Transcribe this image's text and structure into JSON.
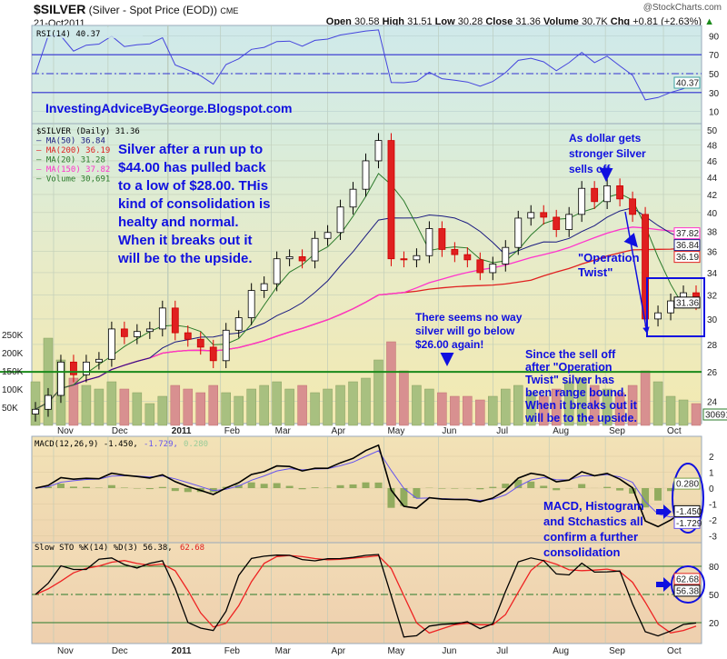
{
  "header": {
    "symbol": "$SILVER",
    "description": "(Silver - Spot Price (EOD))",
    "exchange": "CME",
    "date": "21-Oct2011",
    "watermark": "@StockCharts.com",
    "open_label": "Open",
    "open": "30.58",
    "high_label": "High",
    "high": "31.51",
    "low_label": "Low",
    "low": "30.28",
    "close_label": "Close",
    "close": "31.36",
    "volume_label": "Volume",
    "volume": "30.7K",
    "chg_label": "Chg",
    "chg": "+0.81 (+2.63%)"
  },
  "colors": {
    "annotation": "#1010e0",
    "ma50": "#1a1a80",
    "ma200": "#e02020",
    "ma20": "#2a7a2a",
    "ma150": "#ff33cc",
    "rsi": "#4444dd",
    "macd": "#000000",
    "signal": "#6655ee",
    "histogram": "#7aa04a",
    "sto_k": "#000000",
    "sto_d": "#ee2222",
    "support_line": "#1a8a1a"
  },
  "chart_data": {
    "type": "candlestick",
    "x_ticks": [
      {
        "label": "Nov",
        "date": "2010-11-01"
      },
      {
        "label": "Dec",
        "date": "2010-12-01"
      },
      {
        "label": "2011",
        "date": "2011-01-03"
      },
      {
        "label": "Feb",
        "date": "2011-02-01"
      },
      {
        "label": "Mar",
        "date": "2011-03-01"
      },
      {
        "label": "Apr",
        "date": "2011-04-01"
      },
      {
        "label": "May",
        "date": "2011-05-02"
      },
      {
        "label": "Jun",
        "date": "2011-06-01"
      },
      {
        "label": "Jul",
        "date": "2011-07-01"
      },
      {
        "label": "Aug",
        "date": "2011-08-01"
      },
      {
        "label": "Sep",
        "date": "2011-09-01"
      },
      {
        "label": "Oct",
        "date": "2011-10-03"
      }
    ],
    "dates": [
      "2010-10-22",
      "2010-10-29",
      "2010-11-05",
      "2010-11-12",
      "2010-11-19",
      "2010-11-26",
      "2010-12-03",
      "2010-12-10",
      "2010-12-17",
      "2010-12-24",
      "2010-12-31",
      "2011-01-07",
      "2011-01-14",
      "2011-01-21",
      "2011-01-28",
      "2011-02-04",
      "2011-02-11",
      "2011-02-18",
      "2011-02-25",
      "2011-03-04",
      "2011-03-11",
      "2011-03-18",
      "2011-03-25",
      "2011-04-01",
      "2011-04-08",
      "2011-04-15",
      "2011-04-22",
      "2011-04-29",
      "2011-05-06",
      "2011-05-13",
      "2011-05-20",
      "2011-05-27",
      "2011-06-03",
      "2011-06-10",
      "2011-06-17",
      "2011-06-24",
      "2011-07-01",
      "2011-07-08",
      "2011-07-15",
      "2011-07-22",
      "2011-07-29",
      "2011-08-05",
      "2011-08-12",
      "2011-08-19",
      "2011-08-26",
      "2011-09-02",
      "2011-09-09",
      "2011-09-16",
      "2011-09-23",
      "2011-09-30",
      "2011-10-07",
      "2011-10-14",
      "2011-10-21"
    ],
    "close": [
      23.5,
      24.4,
      26.7,
      25.8,
      26.7,
      26.9,
      29.2,
      28.6,
      29.0,
      29.2,
      30.9,
      28.9,
      28.4,
      27.8,
      26.8,
      29.1,
      30.1,
      32.4,
      33.0,
      35.3,
      35.5,
      35.1,
      37.3,
      37.9,
      40.6,
      42.6,
      46.0,
      48.6,
      35.3,
      35.2,
      35.6,
      38.3,
      36.2,
      35.7,
      35.2,
      34.0,
      34.8,
      36.4,
      39.4,
      40.0,
      39.5,
      38.2,
      39.8,
      42.7,
      41.2,
      43.0,
      41.5,
      39.8,
      30.0,
      30.5,
      31.5,
      32.2,
      31.36
    ],
    "volume_k": [
      120,
      240,
      180,
      130,
      110,
      100,
      120,
      100,
      90,
      60,
      80,
      110,
      100,
      90,
      110,
      90,
      80,
      100,
      110,
      120,
      100,
      110,
      90,
      100,
      110,
      120,
      130,
      180,
      230,
      150,
      110,
      100,
      90,
      80,
      80,
      70,
      80,
      100,
      110,
      90,
      80,
      100,
      120,
      130,
      110,
      100,
      90,
      110,
      150,
      120,
      80,
      70,
      60
    ],
    "price_panel": {
      "legend": [
        {
          "label": "$SILVER (Daily) 31.36",
          "color": "#000000"
        },
        {
          "label": "MA(50) 36.84",
          "color": "#1a1a80"
        },
        {
          "label": "MA(200) 36.19",
          "color": "#e02020"
        },
        {
          "label": "MA(20) 31.28",
          "color": "#2a7a2a"
        },
        {
          "label": "MA(150) 37.82",
          "color": "#ff33cc"
        },
        {
          "label": "Volume 30,691",
          "color": "#2a7a2a"
        }
      ],
      "y_scale": "log",
      "ylim": [
        23.5,
        51
      ],
      "y_ticks": [
        24,
        26,
        28,
        30,
        32,
        34,
        36,
        38,
        40,
        42,
        44,
        46,
        48,
        50
      ],
      "volume_ticks": [
        {
          "label": "50K",
          "value": 50
        },
        {
          "label": "100K",
          "value": 100
        },
        {
          "label": "150K",
          "value": 150
        },
        {
          "label": "200K",
          "value": 200
        },
        {
          "label": "250K",
          "value": 250
        }
      ],
      "value_badges": [
        {
          "label": "37.82",
          "value": 37.82,
          "color": "#ff33cc"
        },
        {
          "label": "36.84",
          "value": 36.84,
          "color": "#1a1a80"
        },
        {
          "label": "36.19",
          "value": 36.19,
          "color": "#e02020"
        },
        {
          "label": "31.36",
          "value": 31.36,
          "color": "#000000"
        }
      ],
      "volume_badge": "30691",
      "support_level": 26
    },
    "rsi_panel": {
      "legend": "RSI(14) 40.37",
      "ylim": [
        0,
        100
      ],
      "y_ticks": [
        10,
        30,
        50,
        70,
        90
      ],
      "badge": "40.37",
      "last": 40.37
    },
    "macd_panel": {
      "legend_main": "MACD(12,26,9) -1.450,",
      "legend_signal": "-1.729,",
      "legend_hist": "0.280",
      "ylim": [
        -3.4,
        3.4
      ],
      "y_ticks": [
        2,
        1,
        0,
        -1,
        -2,
        -3
      ],
      "y_tick_labels": [
        "2",
        "1",
        "0",
        "-1",
        "-2",
        "-3"
      ],
      "badges": [
        {
          "label": "0.280",
          "value": 0.28
        },
        {
          "label": "-1.450",
          "value": -1.45
        },
        {
          "label": "-1.729",
          "value": -1.729
        }
      ]
    },
    "sto_panel": {
      "legend_main": "Slow STO %K(14) %D(3) 56.38,",
      "legend_d": "62.68",
      "ylim": [
        0,
        105
      ],
      "y_ticks": [
        20,
        50,
        80
      ],
      "badges": [
        {
          "label": "62.68",
          "value": 62.68
        },
        {
          "label": "56.38",
          "value": 56.38
        }
      ]
    }
  },
  "annotations": {
    "blog": "InvestingAdviceByGeorge.Blogspot.com",
    "main_note": [
      "Silver after a run up to",
      "$44.00 has pulled back",
      "to a low of $28.00. THis",
      "kind of consolidation is",
      "healty and normal.",
      "When it breaks out it",
      "will be to the upside."
    ],
    "dollar_note": [
      "As dollar gets",
      "stronger Silver",
      "sells off"
    ],
    "twist_note": [
      "\"Operation",
      "Twist\""
    ],
    "support_note": [
      "There seems no way",
      "silver will go below",
      "$26.00 again!"
    ],
    "range_note": [
      "Since the sell off",
      "after \"Operation",
      "Twist\" silver has",
      "been range bound.",
      "When it breaks out it",
      "will be to the upside."
    ],
    "indicator_note": [
      "MACD, Histogram",
      "and Stchastics all",
      "confirm a further",
      "consolidation"
    ]
  }
}
